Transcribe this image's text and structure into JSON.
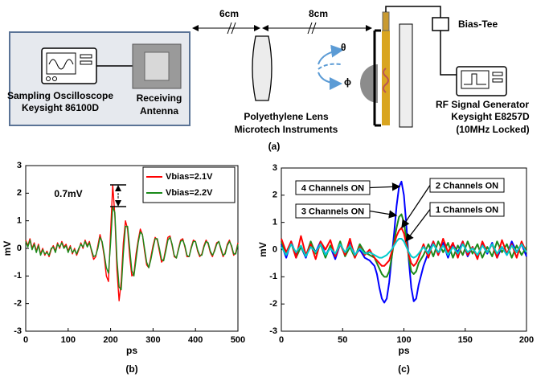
{
  "diagram": {
    "distance_1": "6cm",
    "distance_2": "8cm",
    "oscilloscope": [
      "Sampling Oscilloscope",
      "Keysight 86100D"
    ],
    "antenna": [
      "Receiving",
      "Antenna"
    ],
    "lens": [
      "Polyethylene Lens",
      "Microtech Instruments"
    ],
    "theta": "θ",
    "phi": "ϕ",
    "bias_tee": "Bias-Tee",
    "generator": [
      "RF Signal Generator",
      "Keysight E8257D",
      "(10MHz Locked)"
    ],
    "caption": "(a)"
  },
  "chart_data": [
    {
      "type": "line",
      "caption": "(b)",
      "xlabel": "ps",
      "ylabel": "mV",
      "xlim": [
        0,
        500
      ],
      "ylim": [
        -3,
        3
      ],
      "xticks": [
        0,
        100,
        200,
        300,
        400,
        500
      ],
      "yticks": [
        3,
        2,
        1,
        0,
        -1,
        -2,
        -3
      ],
      "grid": false,
      "legend": "upper right",
      "annotations": [
        "0.7mV"
      ],
      "x": [
        0,
        5,
        10,
        15,
        20,
        25,
        30,
        35,
        40,
        45,
        50,
        55,
        60,
        65,
        70,
        75,
        80,
        85,
        90,
        95,
        100,
        105,
        110,
        115,
        120,
        125,
        130,
        135,
        140,
        145,
        150,
        155,
        160,
        165,
        170,
        175,
        180,
        185,
        190,
        195,
        200,
        205,
        210,
        215,
        220,
        225,
        230,
        235,
        240,
        245,
        250,
        255,
        260,
        265,
        270,
        275,
        280,
        285,
        290,
        295,
        300,
        305,
        310,
        315,
        320,
        325,
        330,
        335,
        340,
        345,
        350,
        355,
        360,
        365,
        370,
        375,
        380,
        385,
        390,
        395,
        400,
        405,
        410,
        415,
        420,
        425,
        430,
        435,
        440,
        445,
        450,
        455,
        460,
        465,
        470,
        475,
        480,
        485,
        490,
        495,
        500
      ],
      "series": [
        {
          "name": "Vbias=2.1V",
          "color": "#ff0000",
          "values": [
            0.3,
            0.1,
            0.35,
            0.0,
            0.2,
            -0.1,
            0.15,
            -0.2,
            0.0,
            -0.25,
            -0.1,
            -0.3,
            -0.05,
            0.1,
            -0.1,
            0.2,
            0.0,
            0.25,
            0.05,
            0.15,
            -0.1,
            0.1,
            -0.2,
            0.0,
            -0.25,
            -0.05,
            0.2,
            0.0,
            0.3,
            0.1,
            0.25,
            -0.1,
            -0.4,
            -0.3,
            0.1,
            0.5,
            0.2,
            -0.3,
            -1.0,
            -1.2,
            0.6,
            2.3,
            1.2,
            -0.8,
            -1.9,
            -1.2,
            0.2,
            1.0,
            0.7,
            -0.3,
            -1.0,
            -0.9,
            -0.2,
            0.3,
            0.7,
            0.5,
            -0.1,
            -0.6,
            -0.7,
            -0.3,
            0.1,
            0.4,
            0.3,
            -0.1,
            -0.5,
            -0.4,
            0.0,
            0.4,
            0.45,
            0.1,
            -0.3,
            -0.35,
            0.0,
            0.3,
            0.35,
            0.05,
            -0.3,
            -0.3,
            0.05,
            0.3,
            0.25,
            -0.1,
            -0.3,
            -0.2,
            0.1,
            0.3,
            0.15,
            -0.15,
            -0.3,
            -0.05,
            0.2,
            0.25,
            -0.05,
            -0.3,
            -0.15,
            0.15,
            0.3,
            0.05,
            -0.25,
            -0.15,
            0.2
          ]
        },
        {
          "name": "Vbias=2.2V",
          "color": "#1a8a1a",
          "values": [
            0.25,
            0.05,
            0.3,
            -0.05,
            0.15,
            -0.15,
            0.1,
            -0.25,
            -0.05,
            -0.2,
            -0.15,
            -0.25,
            0.0,
            0.05,
            -0.15,
            0.15,
            0.05,
            0.2,
            0.0,
            0.1,
            -0.15,
            0.05,
            -0.15,
            -0.05,
            -0.2,
            0.0,
            0.15,
            0.05,
            0.25,
            0.05,
            0.2,
            -0.05,
            -0.3,
            -0.25,
            0.0,
            0.4,
            0.25,
            -0.2,
            -0.7,
            -0.9,
            0.2,
            1.5,
            1.3,
            -0.4,
            -1.4,
            -1.5,
            -0.2,
            0.8,
            0.8,
            0.0,
            -0.8,
            -1.0,
            -0.4,
            0.2,
            0.6,
            0.5,
            0.0,
            -0.5,
            -0.7,
            -0.4,
            0.0,
            0.35,
            0.35,
            0.0,
            -0.4,
            -0.45,
            -0.1,
            0.3,
            0.4,
            0.15,
            -0.25,
            -0.35,
            -0.05,
            0.25,
            0.3,
            0.1,
            -0.25,
            -0.3,
            0.0,
            0.25,
            0.25,
            -0.05,
            -0.25,
            -0.25,
            0.05,
            0.25,
            0.2,
            -0.1,
            -0.25,
            -0.1,
            0.15,
            0.25,
            0.0,
            -0.25,
            -0.2,
            0.1,
            0.25,
            0.1,
            -0.2,
            -0.2,
            0.15
          ]
        }
      ]
    },
    {
      "type": "line",
      "caption": "(c)",
      "xlabel": "ps",
      "ylabel": "mV",
      "xlim": [
        0,
        200
      ],
      "ylim": [
        -3,
        3
      ],
      "xticks": [
        0,
        50,
        100,
        150,
        200
      ],
      "yticks": [
        3,
        2,
        1,
        0,
        -1,
        -2,
        -3
      ],
      "grid": false,
      "annotations": [
        "4 Channels ON",
        "3 Channels ON",
        "2 Channels ON",
        "1 Channels ON"
      ],
      "x": [
        0,
        4,
        8,
        12,
        16,
        20,
        24,
        28,
        32,
        36,
        40,
        44,
        48,
        52,
        56,
        60,
        64,
        68,
        72,
        76,
        78,
        80,
        82,
        84,
        86,
        88,
        90,
        92,
        94,
        96,
        98,
        100,
        102,
        104,
        106,
        108,
        110,
        112,
        116,
        120,
        124,
        128,
        132,
        136,
        140,
        144,
        148,
        152,
        156,
        160,
        164,
        168,
        172,
        176,
        180,
        184,
        188,
        192,
        196,
        200
      ],
      "series": [
        {
          "color": "#0000ff",
          "values": [
            0.2,
            -0.3,
            0.3,
            -0.2,
            0.1,
            -0.3,
            0.25,
            -0.1,
            0.3,
            -0.2,
            0.1,
            -0.35,
            0.2,
            -0.15,
            0.3,
            -0.2,
            0.0,
            -0.3,
            -0.4,
            -0.6,
            -0.9,
            -1.4,
            -1.8,
            -1.95,
            -1.8,
            -1.2,
            -0.3,
            0.6,
            1.6,
            2.3,
            2.5,
            2.0,
            0.9,
            -0.4,
            -1.4,
            -1.9,
            -1.8,
            -1.3,
            -0.6,
            -0.1,
            0.3,
            -0.2,
            0.25,
            -0.3,
            0.2,
            -0.1,
            0.3,
            -0.25,
            0.1,
            -0.3,
            0.2,
            -0.15,
            0.25,
            -0.3,
            0.1,
            -0.2,
            0.3,
            -0.1,
            0.2,
            -0.25
          ]
        },
        {
          "color": "#1a8a1a",
          "values": [
            0.3,
            -0.2,
            0.25,
            -0.3,
            0.1,
            -0.25,
            0.3,
            -0.15,
            0.2,
            -0.3,
            0.15,
            -0.2,
            0.3,
            -0.25,
            0.1,
            -0.3,
            0.2,
            -0.1,
            -0.2,
            -0.3,
            -0.5,
            -0.7,
            -0.9,
            -1.0,
            -1.0,
            -0.8,
            -0.3,
            0.3,
            0.8,
            1.2,
            1.3,
            1.0,
            0.4,
            -0.3,
            -0.8,
            -0.9,
            -0.8,
            -0.5,
            -0.2,
            0.2,
            -0.25,
            0.3,
            -0.1,
            0.25,
            -0.3,
            0.15,
            -0.2,
            0.3,
            -0.15,
            0.2,
            -0.3,
            0.1,
            -0.25,
            0.3,
            -0.1,
            0.2,
            -0.3,
            0.15,
            -0.2,
            0.1
          ]
        },
        {
          "color": "#ff0000",
          "values": [
            0.4,
            -0.1,
            0.3,
            -0.3,
            0.5,
            -0.2,
            0.2,
            -0.35,
            0.3,
            0.0,
            0.35,
            -0.25,
            0.2,
            -0.2,
            0.4,
            -0.3,
            0.1,
            -0.2,
            0.0,
            -0.3,
            -0.4,
            -0.5,
            -0.6,
            -0.6,
            -0.5,
            -0.4,
            -0.1,
            0.2,
            0.5,
            0.7,
            0.8,
            0.6,
            0.2,
            -0.2,
            -0.5,
            -0.6,
            -0.5,
            -0.3,
            0.2,
            -0.3,
            0.3,
            -0.2,
            0.4,
            -0.1,
            0.25,
            -0.3,
            0.3,
            -0.2,
            0.1,
            -0.35,
            0.3,
            -0.1,
            0.2,
            -0.3,
            0.35,
            -0.15,
            0.2,
            -0.3,
            0.3,
            -0.1
          ]
        },
        {
          "color": "#00cccc",
          "values": [
            0.1,
            -0.2,
            0.2,
            -0.1,
            0.15,
            -0.25,
            0.1,
            -0.1,
            0.2,
            -0.2,
            0.05,
            -0.15,
            0.2,
            -0.1,
            0.15,
            -0.2,
            0.05,
            -0.15,
            -0.1,
            -0.2,
            -0.25,
            -0.3,
            -0.3,
            -0.25,
            -0.2,
            -0.1,
            0.0,
            0.15,
            0.3,
            0.4,
            0.4,
            0.3,
            0.1,
            -0.1,
            -0.25,
            -0.3,
            -0.25,
            -0.15,
            0.1,
            -0.15,
            0.2,
            -0.1,
            0.15,
            -0.2,
            0.1,
            -0.15,
            0.2,
            -0.1,
            0.05,
            -0.2,
            0.15,
            -0.1,
            0.2,
            -0.15,
            0.1,
            -0.2,
            0.15,
            -0.1,
            0.2,
            -0.1
          ]
        }
      ]
    }
  ]
}
